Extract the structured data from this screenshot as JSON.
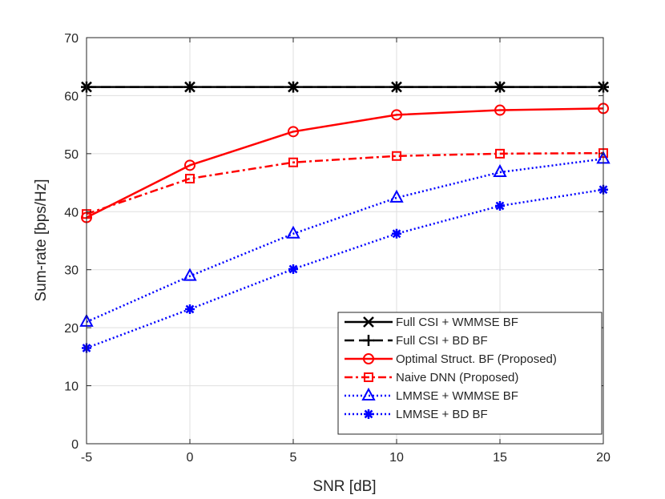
{
  "chart_data": {
    "type": "line",
    "title": "",
    "xlabel": "SNR [dB]",
    "ylabel": "Sum-rate [bps/Hz]",
    "xlim": [
      -5,
      20
    ],
    "ylim": [
      0,
      70
    ],
    "xticks": [
      -5,
      0,
      5,
      10,
      15,
      20
    ],
    "yticks": [
      0,
      10,
      20,
      30,
      40,
      50,
      60,
      70
    ],
    "grid": true,
    "legend_position": "bottom-right",
    "x": [
      -5,
      0,
      5,
      10,
      15,
      20
    ],
    "series": [
      {
        "name": "Full CSI + WMMSE BF",
        "values": [
          61.5,
          61.5,
          61.5,
          61.5,
          61.5,
          61.5
        ],
        "color": "#000000",
        "dash": "solid",
        "marker": "x"
      },
      {
        "name": "Full CSI + BD BF",
        "values": [
          61.5,
          61.5,
          61.5,
          61.5,
          61.5,
          61.5
        ],
        "color": "#000000",
        "dash": "dashed",
        "marker": "plus"
      },
      {
        "name": "Optimal Struct. BF (Proposed)",
        "values": [
          39.0,
          48.0,
          53.8,
          56.7,
          57.5,
          57.8
        ],
        "color": "#ff0000",
        "dash": "solid",
        "marker": "circle"
      },
      {
        "name": "Naive DNN (Proposed)",
        "values": [
          39.6,
          45.7,
          48.5,
          49.6,
          50.0,
          50.1
        ],
        "color": "#ff0000",
        "dash": "dashdot",
        "marker": "square"
      },
      {
        "name": "LMMSE + WMMSE BF",
        "values": [
          21.0,
          28.9,
          36.2,
          42.4,
          46.8,
          49.1
        ],
        "color": "#0000ff",
        "dash": "dotted",
        "marker": "triangle"
      },
      {
        "name": "LMMSE + BD BF",
        "values": [
          16.5,
          23.2,
          30.1,
          36.2,
          41.0,
          43.8
        ],
        "color": "#0000ff",
        "dash": "dotted",
        "marker": "asterisk"
      }
    ]
  }
}
